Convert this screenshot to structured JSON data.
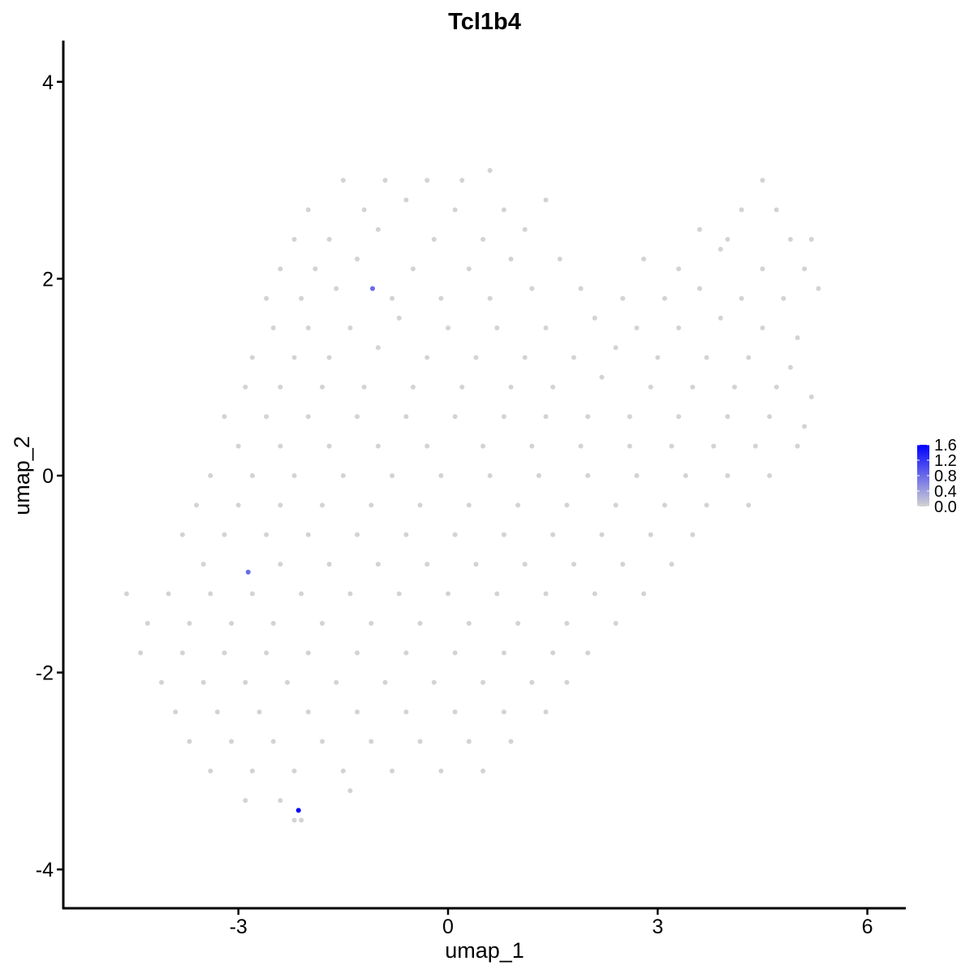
{
  "chart_data": {
    "type": "scatter",
    "title": "Tcl1b4",
    "xlabel": "umap_1",
    "ylabel": "umap_2",
    "xlim": [
      -5.0,
      6.2
    ],
    "ylim": [
      -4.3,
      4.4
    ],
    "xticks": [
      -3,
      0,
      3,
      6
    ],
    "yticks": [
      -4,
      -2,
      0,
      2,
      4
    ],
    "xtick_labels": [
      "-3",
      "0",
      "3",
      "6"
    ],
    "ytick_labels": [
      "-4",
      "-2",
      "0",
      "2",
      "4"
    ],
    "grid": false,
    "legend": {
      "placement": "right",
      "type": "colorbar",
      "range": [
        0.0,
        1.6
      ],
      "labels": [
        "1.6",
        "1.2",
        "0.8",
        "0.4",
        "0.0"
      ],
      "low_color": "#D3D3D3",
      "high_color": "#0000FF"
    },
    "background_point_color": "#D3D3D3",
    "expressed_points": [
      {
        "x": -1.08,
        "y": 1.9,
        "value": 0.8
      },
      {
        "x": -2.86,
        "y": -0.98,
        "value": 0.8
      },
      {
        "x": -2.14,
        "y": -3.4,
        "value": 1.6
      }
    ],
    "points": [
      [
        -1.5,
        3.0
      ],
      [
        -0.9,
        3.0
      ],
      [
        -0.3,
        3.0
      ],
      [
        0.2,
        3.0
      ],
      [
        0.6,
        3.1
      ],
      [
        4.5,
        3.0
      ],
      [
        -2.0,
        2.7
      ],
      [
        -1.2,
        2.7
      ],
      [
        -0.6,
        2.8
      ],
      [
        0.1,
        2.7
      ],
      [
        0.8,
        2.7
      ],
      [
        1.4,
        2.8
      ],
      [
        4.2,
        2.7
      ],
      [
        4.7,
        2.7
      ],
      [
        -2.2,
        2.4
      ],
      [
        -1.7,
        2.4
      ],
      [
        -1.0,
        2.5
      ],
      [
        -0.2,
        2.4
      ],
      [
        0.5,
        2.4
      ],
      [
        1.1,
        2.5
      ],
      [
        3.6,
        2.5
      ],
      [
        4.0,
        2.4
      ],
      [
        4.9,
        2.4
      ],
      [
        5.2,
        2.4
      ],
      [
        -2.4,
        2.1
      ],
      [
        -1.9,
        2.1
      ],
      [
        -1.3,
        2.2
      ],
      [
        -0.5,
        2.1
      ],
      [
        0.3,
        2.1
      ],
      [
        0.9,
        2.2
      ],
      [
        1.6,
        2.2
      ],
      [
        2.8,
        2.2
      ],
      [
        3.3,
        2.1
      ],
      [
        3.9,
        2.3
      ],
      [
        4.5,
        2.1
      ],
      [
        5.1,
        2.1
      ],
      [
        -2.6,
        1.8
      ],
      [
        -2.1,
        1.8
      ],
      [
        -1.6,
        1.9
      ],
      [
        -0.8,
        1.8
      ],
      [
        -0.1,
        1.8
      ],
      [
        0.6,
        1.8
      ],
      [
        1.2,
        1.9
      ],
      [
        1.9,
        1.9
      ],
      [
        2.5,
        1.8
      ],
      [
        3.1,
        1.8
      ],
      [
        3.6,
        1.9
      ],
      [
        4.2,
        1.8
      ],
      [
        4.8,
        1.8
      ],
      [
        5.3,
        1.9
      ],
      [
        -2.5,
        1.5
      ],
      [
        -2.0,
        1.5
      ],
      [
        -1.4,
        1.5
      ],
      [
        -0.7,
        1.6
      ],
      [
        0.0,
        1.5
      ],
      [
        0.7,
        1.5
      ],
      [
        1.4,
        1.5
      ],
      [
        2.1,
        1.6
      ],
      [
        2.7,
        1.5
      ],
      [
        3.3,
        1.5
      ],
      [
        3.9,
        1.6
      ],
      [
        4.5,
        1.5
      ],
      [
        5.0,
        1.4
      ],
      [
        -2.8,
        1.2
      ],
      [
        -2.2,
        1.2
      ],
      [
        -1.7,
        1.2
      ],
      [
        -1.0,
        1.3
      ],
      [
        -0.3,
        1.2
      ],
      [
        0.4,
        1.2
      ],
      [
        1.1,
        1.2
      ],
      [
        1.8,
        1.2
      ],
      [
        2.4,
        1.3
      ],
      [
        3.0,
        1.2
      ],
      [
        3.7,
        1.2
      ],
      [
        4.3,
        1.2
      ],
      [
        4.9,
        1.1
      ],
      [
        -2.9,
        0.9
      ],
      [
        -2.4,
        0.9
      ],
      [
        -1.8,
        0.9
      ],
      [
        -1.2,
        0.9
      ],
      [
        -0.5,
        0.9
      ],
      [
        0.2,
        0.9
      ],
      [
        0.9,
        0.9
      ],
      [
        1.5,
        0.9
      ],
      [
        2.2,
        1.0
      ],
      [
        2.9,
        0.9
      ],
      [
        3.5,
        0.9
      ],
      [
        4.1,
        0.9
      ],
      [
        4.7,
        0.9
      ],
      [
        5.2,
        0.8
      ],
      [
        -3.2,
        0.6
      ],
      [
        -2.6,
        0.6
      ],
      [
        -2.0,
        0.6
      ],
      [
        -1.3,
        0.6
      ],
      [
        -0.6,
        0.6
      ],
      [
        0.1,
        0.6
      ],
      [
        0.8,
        0.6
      ],
      [
        1.4,
        0.6
      ],
      [
        2.0,
        0.6
      ],
      [
        2.6,
        0.6
      ],
      [
        3.3,
        0.6
      ],
      [
        4.0,
        0.6
      ],
      [
        4.6,
        0.6
      ],
      [
        5.1,
        0.5
      ],
      [
        -3.0,
        0.3
      ],
      [
        -2.4,
        0.3
      ],
      [
        -1.7,
        0.3
      ],
      [
        -1.0,
        0.3
      ],
      [
        -0.3,
        0.3
      ],
      [
        0.5,
        0.3
      ],
      [
        1.2,
        0.3
      ],
      [
        1.9,
        0.3
      ],
      [
        2.6,
        0.3
      ],
      [
        3.2,
        0.3
      ],
      [
        3.8,
        0.3
      ],
      [
        4.4,
        0.3
      ],
      [
        5.0,
        0.3
      ],
      [
        -3.4,
        0.0
      ],
      [
        -2.8,
        0.0
      ],
      [
        -2.2,
        0.0
      ],
      [
        -1.5,
        0.0
      ],
      [
        -0.8,
        0.0
      ],
      [
        -0.1,
        0.0
      ],
      [
        0.6,
        0.0
      ],
      [
        1.3,
        0.0
      ],
      [
        2.0,
        0.0
      ],
      [
        2.7,
        0.0
      ],
      [
        3.4,
        0.0
      ],
      [
        4.0,
        0.0
      ],
      [
        4.6,
        0.0
      ],
      [
        -3.6,
        -0.3
      ],
      [
        -3.0,
        -0.3
      ],
      [
        -2.4,
        -0.3
      ],
      [
        -1.8,
        -0.3
      ],
      [
        -1.1,
        -0.3
      ],
      [
        -0.4,
        -0.3
      ],
      [
        0.3,
        -0.3
      ],
      [
        1.0,
        -0.3
      ],
      [
        1.7,
        -0.3
      ],
      [
        2.4,
        -0.3
      ],
      [
        3.1,
        -0.3
      ],
      [
        3.7,
        -0.3
      ],
      [
        4.3,
        -0.3
      ],
      [
        -3.8,
        -0.6
      ],
      [
        -3.2,
        -0.6
      ],
      [
        -2.6,
        -0.6
      ],
      [
        -2.0,
        -0.6
      ],
      [
        -1.3,
        -0.6
      ],
      [
        -0.6,
        -0.6
      ],
      [
        0.1,
        -0.6
      ],
      [
        0.8,
        -0.6
      ],
      [
        1.5,
        -0.6
      ],
      [
        2.2,
        -0.6
      ],
      [
        2.9,
        -0.6
      ],
      [
        3.5,
        -0.6
      ],
      [
        -3.5,
        -0.9
      ],
      [
        -2.4,
        -0.9
      ],
      [
        -1.7,
        -0.9
      ],
      [
        -1.0,
        -0.9
      ],
      [
        -0.3,
        -0.9
      ],
      [
        0.4,
        -0.9
      ],
      [
        1.1,
        -0.9
      ],
      [
        1.8,
        -0.9
      ],
      [
        2.5,
        -0.9
      ],
      [
        3.2,
        -0.9
      ],
      [
        -4.6,
        -1.2
      ],
      [
        -4.0,
        -1.2
      ],
      [
        -3.4,
        -1.2
      ],
      [
        -2.8,
        -1.2
      ],
      [
        -2.1,
        -1.2
      ],
      [
        -1.4,
        -1.2
      ],
      [
        -0.7,
        -1.2
      ],
      [
        0.0,
        -1.2
      ],
      [
        0.7,
        -1.2
      ],
      [
        1.4,
        -1.2
      ],
      [
        2.1,
        -1.2
      ],
      [
        2.8,
        -1.2
      ],
      [
        -4.3,
        -1.5
      ],
      [
        -3.7,
        -1.5
      ],
      [
        -3.1,
        -1.5
      ],
      [
        -2.5,
        -1.5
      ],
      [
        -1.8,
        -1.5
      ],
      [
        -1.1,
        -1.5
      ],
      [
        -0.4,
        -1.5
      ],
      [
        0.3,
        -1.5
      ],
      [
        1.0,
        -1.5
      ],
      [
        1.7,
        -1.5
      ],
      [
        2.4,
        -1.5
      ],
      [
        -4.4,
        -1.8
      ],
      [
        -3.8,
        -1.8
      ],
      [
        -3.2,
        -1.8
      ],
      [
        -2.6,
        -1.8
      ],
      [
        -2.0,
        -1.8
      ],
      [
        -1.3,
        -1.8
      ],
      [
        -0.6,
        -1.8
      ],
      [
        0.1,
        -1.8
      ],
      [
        0.8,
        -1.8
      ],
      [
        1.5,
        -1.8
      ],
      [
        2.0,
        -1.8
      ],
      [
        -4.1,
        -2.1
      ],
      [
        -3.5,
        -2.1
      ],
      [
        -2.9,
        -2.1
      ],
      [
        -2.3,
        -2.1
      ],
      [
        -1.6,
        -2.1
      ],
      [
        -0.9,
        -2.1
      ],
      [
        -0.2,
        -2.1
      ],
      [
        0.5,
        -2.1
      ],
      [
        1.2,
        -2.1
      ],
      [
        1.7,
        -2.1
      ],
      [
        -3.9,
        -2.4
      ],
      [
        -3.3,
        -2.4
      ],
      [
        -2.7,
        -2.4
      ],
      [
        -2.0,
        -2.4
      ],
      [
        -1.3,
        -2.4
      ],
      [
        -0.6,
        -2.4
      ],
      [
        0.1,
        -2.4
      ],
      [
        0.8,
        -2.4
      ],
      [
        1.4,
        -2.4
      ],
      [
        -3.7,
        -2.7
      ],
      [
        -3.1,
        -2.7
      ],
      [
        -2.5,
        -2.7
      ],
      [
        -1.8,
        -2.7
      ],
      [
        -1.1,
        -2.7
      ],
      [
        -0.4,
        -2.7
      ],
      [
        0.3,
        -2.7
      ],
      [
        0.9,
        -2.7
      ],
      [
        -3.4,
        -3.0
      ],
      [
        -2.8,
        -3.0
      ],
      [
        -2.2,
        -3.0
      ],
      [
        -1.5,
        -3.0
      ],
      [
        -0.8,
        -3.0
      ],
      [
        -0.1,
        -3.0
      ],
      [
        0.5,
        -3.0
      ],
      [
        -2.9,
        -3.3
      ],
      [
        -2.4,
        -3.3
      ],
      [
        -1.4,
        -3.2
      ],
      [
        -2.2,
        -3.5
      ],
      [
        -2.1,
        -3.5
      ]
    ]
  }
}
